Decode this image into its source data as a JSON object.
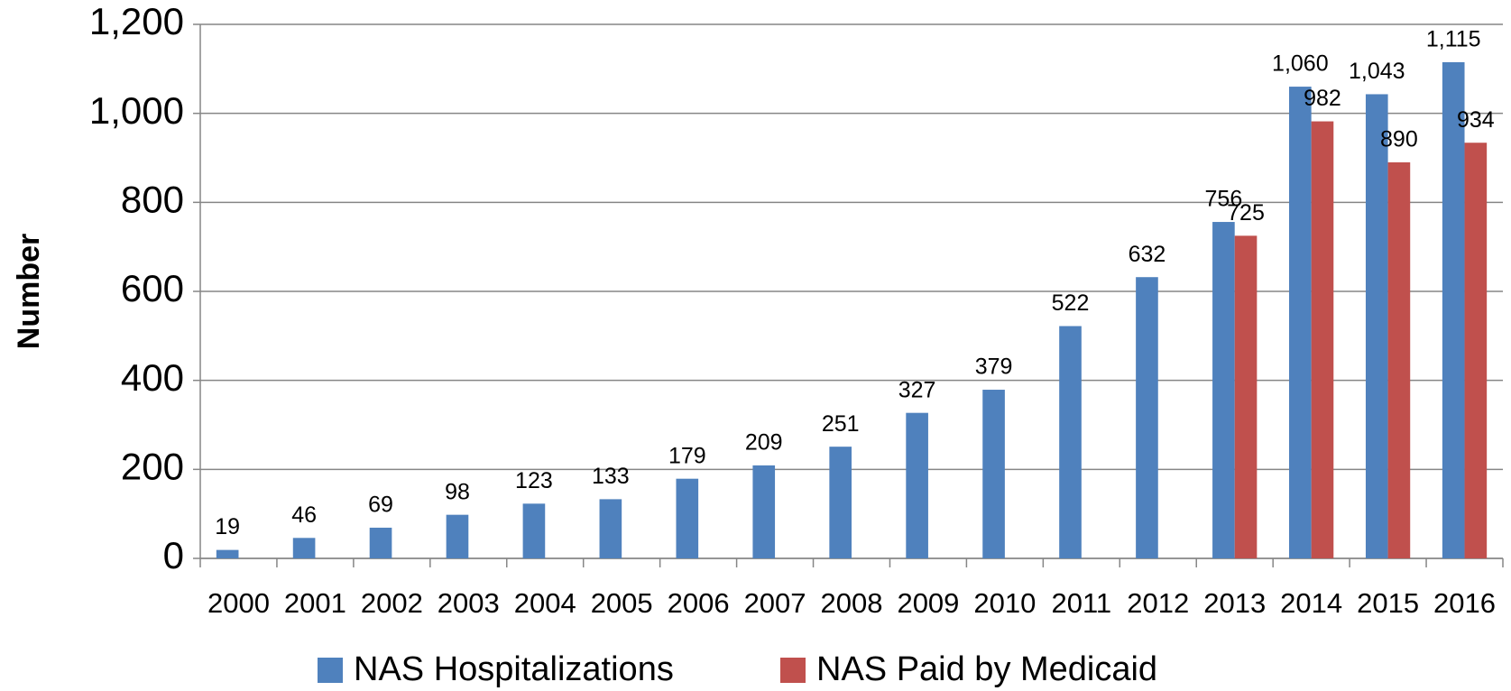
{
  "chart_data": {
    "type": "bar",
    "y_label": "Number",
    "categories": [
      "2000",
      "2001",
      "2002",
      "2003",
      "2004",
      "2005",
      "2006",
      "2007",
      "2008",
      "2009",
      "2010",
      "2011",
      "2012",
      "2013",
      "2014",
      "2015",
      "2016"
    ],
    "series": [
      {
        "name": "NAS Hospitalizations",
        "color": "#4f81bd",
        "values": [
          19,
          46,
          69,
          98,
          123,
          133,
          179,
          209,
          251,
          327,
          379,
          522,
          632,
          756,
          1060,
          1043,
          1115
        ],
        "value_labels": [
          "19",
          "46",
          "69",
          "98",
          "123",
          "133",
          "179",
          "209",
          "251",
          "327",
          "379",
          "522",
          "632",
          "756",
          "1,060",
          "1,043",
          "1,115"
        ]
      },
      {
        "name": "NAS Paid by Medicaid",
        "color": "#c0504d",
        "values": [
          null,
          null,
          null,
          null,
          null,
          null,
          null,
          null,
          null,
          null,
          null,
          null,
          null,
          725,
          982,
          890,
          934
        ]
      }
    ],
    "ylim": [
      0,
      1200
    ],
    "yticks": [
      0,
      200,
      400,
      600,
      800,
      {
        "value": 1000,
        "label": "1,000"
      },
      {
        "value": 1200,
        "label": "1,200"
      }
    ],
    "grid": true,
    "legend": "bottom"
  }
}
